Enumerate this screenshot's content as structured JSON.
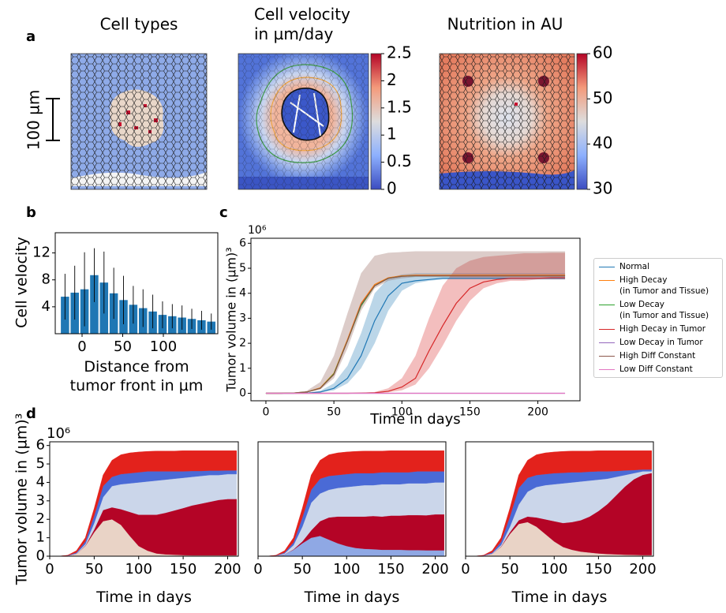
{
  "panel_labels": [
    "a",
    "b",
    "c",
    "d"
  ],
  "images": [
    {
      "title": "Cell types",
      "scale_bar": "100 µm"
    },
    {
      "title": "Cell velocity\nin µm/day",
      "colorbar": {
        "ylim": [
          0,
          2.5
        ],
        "yticks": [
          0,
          0.5,
          1,
          1.5,
          2,
          2.5
        ]
      }
    },
    {
      "title": "Nutrition in AU",
      "colorbar": {
        "ylim": [
          30,
          60
        ],
        "yticks": [
          30,
          40,
          50,
          60
        ]
      }
    }
  ],
  "chart_data": [
    {
      "type": "bar",
      "ylabel": "Cell velocity",
      "xlabel": "Distance from\ntumor front in µm",
      "color": "#1f77b4",
      "x": [
        -21,
        -9,
        3,
        15,
        27,
        39,
        51,
        63,
        75,
        87,
        99,
        111,
        123,
        135,
        147,
        159
      ],
      "values": [
        5.5,
        6.1,
        6.6,
        8.7,
        7.6,
        6.0,
        5.0,
        4.3,
        3.8,
        3.3,
        2.8,
        2.6,
        2.4,
        2.2,
        2.0,
        1.8
      ],
      "errors": [
        3.4,
        4,
        5.5,
        4,
        4.6,
        3.8,
        3.6,
        2.8,
        2.8,
        2.5,
        2,
        1.8,
        1.8,
        1.5,
        1.4,
        1.2
      ],
      "xlim": [
        -33,
        167
      ],
      "xticks": [
        0,
        50,
        100
      ],
      "ylim": [
        0,
        15
      ],
      "yticks": [
        4,
        8,
        12
      ]
    },
    {
      "type": "line",
      "ylabel": "Tumor volume in (µm)³",
      "y_offset": "10⁶",
      "xlabel": "Time in days",
      "x": [
        0,
        10,
        20,
        30,
        40,
        50,
        60,
        70,
        80,
        90,
        100,
        110,
        120,
        130,
        140,
        150,
        160,
        170,
        180,
        190,
        200,
        210,
        220
      ],
      "xlim": [
        -11,
        231
      ],
      "xticks": [
        0,
        50,
        100,
        150,
        200
      ],
      "ylim": [
        -0.3,
        6.2
      ],
      "yticks": [
        0,
        1,
        2,
        3,
        4,
        5,
        6
      ],
      "series": [
        {
          "name": "Normal",
          "color": "#1f77b4",
          "values": [
            0,
            0,
            0,
            0.01,
            0.05,
            0.2,
            0.6,
            1.5,
            2.9,
            3.9,
            4.4,
            4.5,
            4.55,
            4.6,
            4.6,
            4.6,
            4.6,
            4.6,
            4.6,
            4.6,
            4.6,
            4.6,
            4.6
          ],
          "lower": [
            0,
            0,
            0,
            0,
            0.03,
            0.12,
            0.4,
            1.0,
            2.0,
            3.3,
            4.1,
            4.4,
            4.5,
            4.55,
            4.55,
            4.55,
            4.55,
            4.55,
            4.55,
            4.55,
            4.55,
            4.55,
            4.55
          ],
          "upper": [
            0,
            0,
            0,
            0.02,
            0.1,
            0.4,
            1.1,
            2.4,
            4.0,
            4.6,
            4.75,
            4.8,
            4.8,
            4.8,
            4.8,
            4.8,
            4.8,
            4.8,
            4.8,
            4.8,
            4.8,
            4.8,
            4.8
          ]
        },
        {
          "name": "High Decay\n(in Tumor and Tissue)",
          "color": "#ff7f0e",
          "values": [
            0,
            0,
            0.01,
            0.05,
            0.22,
            0.8,
            2.15,
            3.6,
            4.35,
            4.62,
            4.7,
            4.72,
            4.72,
            4.72,
            4.72,
            4.72,
            4.72,
            4.72,
            4.72,
            4.72,
            4.72,
            4.72,
            4.72
          ]
        },
        {
          "name": "Low Decay\n(in Tumor and Tissue)",
          "color": "#2ca02c",
          "values": [
            0,
            0,
            0.01,
            0.05,
            0.2,
            0.78,
            2.1,
            3.5,
            4.3,
            4.6,
            4.68,
            4.7,
            4.7,
            4.7,
            4.7,
            4.7,
            4.7,
            4.7,
            4.7,
            4.7,
            4.7,
            4.7,
            4.7
          ]
        },
        {
          "name": "High Decay in Tumor",
          "color": "#d62728",
          "values": [
            0,
            0,
            0,
            0,
            0,
            0,
            0,
            0.01,
            0.02,
            0.08,
            0.25,
            0.6,
            1.7,
            2.7,
            3.6,
            4.2,
            4.45,
            4.55,
            4.6,
            4.6,
            4.6,
            4.62,
            4.62
          ],
          "lower": [
            0,
            0,
            0,
            0,
            0,
            0,
            0,
            0,
            0.01,
            0.04,
            0.12,
            0.35,
            1.0,
            1.9,
            2.9,
            3.7,
            4.2,
            4.4,
            4.5,
            4.5,
            4.55,
            4.55,
            4.55
          ],
          "upper": [
            0,
            0,
            0,
            0,
            0,
            0,
            0.01,
            0.02,
            0.05,
            0.2,
            0.6,
            1.5,
            3.0,
            4.3,
            5.0,
            5.3,
            5.45,
            5.5,
            5.55,
            5.6,
            5.6,
            5.62,
            5.62
          ]
        },
        {
          "name": "Low Decay in Tumor",
          "color": "#9467bd",
          "values": [
            0,
            0,
            0,
            0,
            0,
            0,
            0,
            0,
            0,
            0,
            0,
            0,
            0,
            0,
            0,
            0,
            0,
            0,
            0,
            0,
            0,
            0,
            0
          ]
        },
        {
          "name": "High Diff Constant",
          "color": "#8c564b",
          "values": [
            0,
            0,
            0.01,
            0.05,
            0.2,
            0.75,
            2.1,
            3.55,
            4.3,
            4.6,
            4.68,
            4.7,
            4.7,
            4.7,
            4.7,
            4.7,
            4.7,
            4.7,
            4.7,
            4.7,
            4.7,
            4.7,
            4.7
          ],
          "lower": [
            0,
            0,
            0.01,
            0.04,
            0.15,
            0.6,
            1.8,
            3.3,
            4.2,
            4.5,
            4.6,
            4.65,
            4.65,
            4.65,
            4.65,
            4.65,
            4.65,
            4.65,
            4.65,
            4.65,
            4.65,
            4.65,
            4.65
          ],
          "upper": [
            0,
            0,
            0.02,
            0.1,
            0.45,
            1.5,
            3.2,
            4.8,
            5.5,
            5.62,
            5.65,
            5.68,
            5.68,
            5.68,
            5.68,
            5.68,
            5.68,
            5.68,
            5.68,
            5.68,
            5.68,
            5.68,
            5.68
          ]
        },
        {
          "name": "Low Diff Constant",
          "color": "#e377c2",
          "values": [
            0,
            0,
            0,
            0,
            0,
            0,
            0,
            0,
            0,
            0,
            0,
            0,
            0,
            0,
            0,
            0,
            0,
            0,
            0,
            0,
            0,
            0,
            0
          ]
        }
      ]
    },
    {
      "type": "stackedarea",
      "ylabel": "Tumor volume in (µm)³",
      "y_offset": "10⁶",
      "xlabel": "Time in days",
      "x": [
        0,
        10,
        20,
        30,
        40,
        50,
        60,
        70,
        80,
        90,
        100,
        110,
        120,
        130,
        140,
        150,
        160,
        170,
        180,
        190,
        200,
        210
      ],
      "xlim": [
        0,
        212
      ],
      "xticks": [
        0,
        50,
        100,
        150,
        200
      ],
      "ylim": [
        0,
        6.2
      ],
      "yticks": [
        0,
        1,
        2,
        3,
        4,
        5,
        6
      ],
      "series": [
        {
          "color": "#e9d3c6",
          "values": [
            0,
            0,
            0.02,
            0.12,
            0.55,
            1.3,
            1.9,
            2.0,
            1.7,
            1.1,
            0.55,
            0.3,
            0.15,
            0.1,
            0.08,
            0.06,
            0.05,
            0.05,
            0.05,
            0.05,
            0.05,
            0.05
          ]
        },
        {
          "color": "#b40426",
          "values": [
            0,
            0,
            0,
            0,
            0.02,
            0.15,
            0.6,
            0.65,
            0.85,
            1.3,
            1.7,
            1.95,
            2.1,
            2.25,
            2.4,
            2.55,
            2.7,
            2.8,
            2.9,
            3.0,
            3.05,
            3.05
          ]
        },
        {
          "color": "#cbd6ea",
          "values": [
            0,
            0,
            0.01,
            0.03,
            0.08,
            0.35,
            0.7,
            1.15,
            1.35,
            1.55,
            1.75,
            1.8,
            1.85,
            1.8,
            1.72,
            1.64,
            1.55,
            1.5,
            1.45,
            1.35,
            1.35,
            1.35
          ]
        },
        {
          "color": "#4a6ad6",
          "values": [
            0,
            0,
            0.01,
            0.05,
            0.15,
            0.4,
            0.6,
            0.5,
            0.55,
            0.55,
            0.55,
            0.55,
            0.5,
            0.45,
            0.4,
            0.35,
            0.32,
            0.27,
            0.24,
            0.24,
            0.2,
            0.2
          ]
        },
        {
          "color": "#e3221c",
          "values": [
            0,
            0,
            0.01,
            0.1,
            0.2,
            0.4,
            0.6,
            0.9,
            1.05,
            1.1,
            1.1,
            1.08,
            1.1,
            1.1,
            1.1,
            1.12,
            1.1,
            1.1,
            1.08,
            1.08,
            1.07,
            1.07
          ]
        }
      ]
    },
    {
      "type": "stackedarea",
      "xlabel": "Time in days",
      "x": [
        0,
        10,
        20,
        30,
        40,
        50,
        60,
        70,
        80,
        90,
        100,
        110,
        120,
        130,
        140,
        150,
        160,
        170,
        180,
        190,
        200,
        210
      ],
      "xlim": [
        0,
        212
      ],
      "xticks": [
        0,
        50,
        100,
        150,
        200
      ],
      "ylim": [
        0,
        6.2
      ],
      "series": [
        {
          "color": "#8fa8e4",
          "values": [
            0,
            0,
            0.02,
            0.1,
            0.35,
            0.7,
            1.0,
            1.1,
            0.9,
            0.7,
            0.55,
            0.45,
            0.4,
            0.38,
            0.35,
            0.35,
            0.35,
            0.33,
            0.33,
            0.32,
            0.32,
            0.32
          ]
        },
        {
          "color": "#b40426",
          "values": [
            0,
            0,
            0,
            0,
            0.02,
            0.1,
            0.4,
            0.8,
            1.2,
            1.45,
            1.6,
            1.7,
            1.75,
            1.8,
            1.8,
            1.85,
            1.85,
            1.9,
            1.9,
            1.9,
            1.95,
            1.95
          ]
        },
        {
          "color": "#cbd6ea",
          "values": [
            0,
            0,
            0.01,
            0.05,
            0.23,
            0.8,
            1.5,
            1.5,
            1.5,
            1.55,
            1.6,
            1.65,
            1.7,
            1.67,
            1.75,
            1.7,
            1.7,
            1.72,
            1.72,
            1.73,
            1.73,
            1.73
          ]
        },
        {
          "color": "#4a6ad6",
          "values": [
            0,
            0,
            0.01,
            0.05,
            0.15,
            0.5,
            0.7,
            0.8,
            0.75,
            0.7,
            0.7,
            0.7,
            0.65,
            0.65,
            0.65,
            0.65,
            0.65,
            0.6,
            0.65,
            0.65,
            0.6,
            0.6
          ]
        },
        {
          "color": "#e3221c",
          "values": [
            0,
            0,
            0.01,
            0.1,
            0.25,
            0.5,
            0.8,
            1.0,
            1.15,
            1.2,
            1.2,
            1.18,
            1.2,
            1.2,
            1.15,
            1.17,
            1.17,
            1.17,
            1.12,
            1.12,
            1.12,
            1.12
          ]
        }
      ]
    },
    {
      "type": "stackedarea",
      "xlabel": "Time in days",
      "x": [
        0,
        10,
        20,
        30,
        40,
        50,
        60,
        70,
        80,
        90,
        100,
        110,
        120,
        130,
        140,
        150,
        160,
        170,
        180,
        190,
        200,
        210
      ],
      "xlim": [
        0,
        212
      ],
      "xticks": [
        0,
        50,
        100,
        150,
        200
      ],
      "ylim": [
        0,
        6.2
      ],
      "series": [
        {
          "color": "#e9d3c6",
          "values": [
            0,
            0,
            0.02,
            0.12,
            0.5,
            1.2,
            1.75,
            1.85,
            1.6,
            1.2,
            0.8,
            0.5,
            0.35,
            0.25,
            0.2,
            0.15,
            0.12,
            0.1,
            0.08,
            0.07,
            0.06,
            0.06
          ]
        },
        {
          "color": "#b40426",
          "values": [
            0,
            0,
            0,
            0,
            0.02,
            0.1,
            0.2,
            0.3,
            0.5,
            0.8,
            1.1,
            1.3,
            1.5,
            1.7,
            1.95,
            2.3,
            2.7,
            3.2,
            3.7,
            4.1,
            4.35,
            4.45
          ]
        },
        {
          "color": "#cbd6ea",
          "values": [
            0,
            0,
            0.01,
            0.03,
            0.08,
            0.3,
            0.85,
            1.35,
            1.65,
            1.85,
            2.0,
            2.15,
            2.15,
            2.1,
            1.95,
            1.7,
            1.38,
            1.0,
            0.62,
            0.33,
            0.19,
            0.09
          ]
        },
        {
          "color": "#4a6ad6",
          "values": [
            0,
            0,
            0.01,
            0.05,
            0.18,
            0.55,
            0.9,
            0.75,
            0.65,
            0.6,
            0.6,
            0.57,
            0.55,
            0.5,
            0.48,
            0.45,
            0.4,
            0.32,
            0.25,
            0.17,
            0.1,
            0.1
          ]
        },
        {
          "color": "#e3221c",
          "values": [
            0,
            0,
            0.01,
            0.1,
            0.22,
            0.45,
            0.7,
            0.95,
            1.1,
            1.15,
            1.15,
            1.16,
            1.15,
            1.15,
            1.12,
            1.12,
            1.12,
            1.1,
            1.07,
            1.05,
            1.02,
            1.02
          ]
        }
      ]
    }
  ]
}
